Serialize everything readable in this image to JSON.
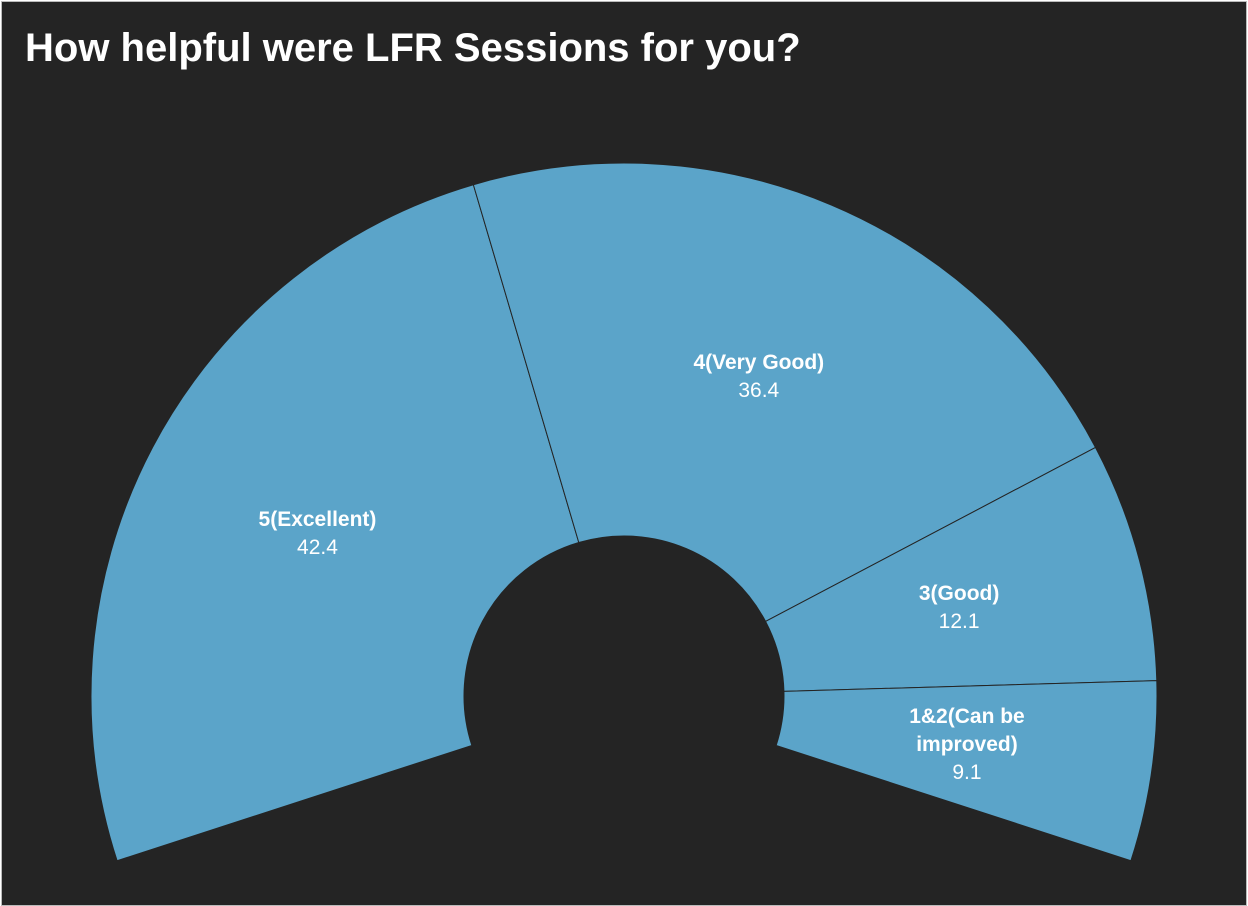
{
  "chart_data": {
    "type": "pie",
    "title": "How helpful were LFR Sessions for you?",
    "categories": [
      "5(Excellent)",
      "4(Very Good)",
      "3(Good)",
      "1&2(Can be improved)"
    ],
    "values": [
      42.4,
      36.4,
      12.1,
      9.1
    ],
    "color": "#5ba4c9"
  }
}
